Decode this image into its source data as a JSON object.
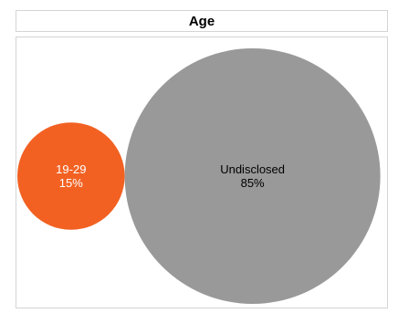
{
  "chart_data": {
    "type": "bubble",
    "title": "Age",
    "series": [
      {
        "name": "19-29",
        "value": 15,
        "label": "15%",
        "color": "#f26122",
        "text_color": "#ffffff"
      },
      {
        "name": "Undisclosed",
        "value": 85,
        "label": "85%",
        "color": "#999999",
        "text_color": "#000000"
      }
    ]
  }
}
